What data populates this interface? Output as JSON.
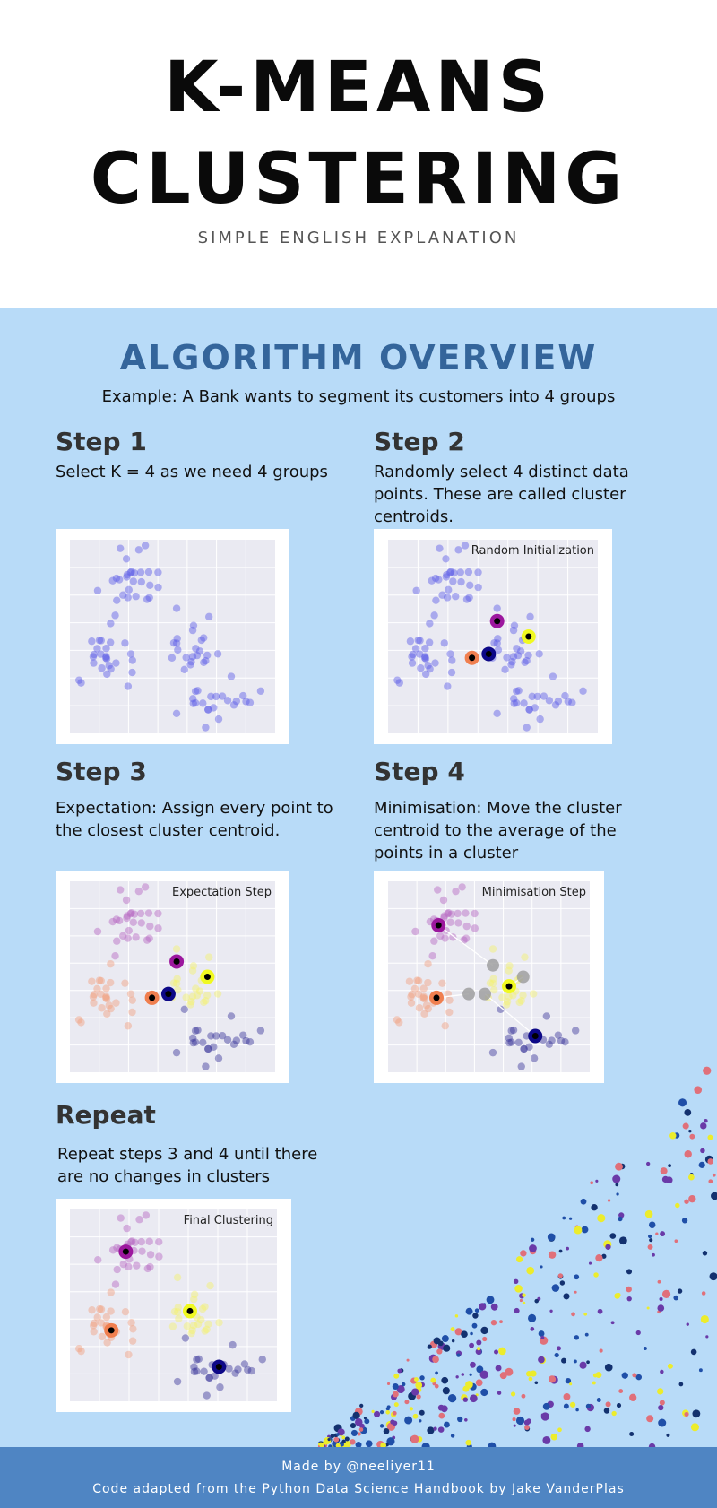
{
  "header": {
    "title_line_1": "K-MEANS",
    "title_line_2": "CLUSTERING",
    "subtitle": "SIMPLE ENGLISH EXPLANATION"
  },
  "overview": {
    "title": "ALGORITHM OVERVIEW",
    "example": "Example: A Bank wants to segment its customers into 4 groups"
  },
  "steps": [
    {
      "heading": "Step 1",
      "text": "Select K = 4 as we need 4 groups",
      "plot_title": ""
    },
    {
      "heading": "Step 2",
      "text": "Randomly select 4 distinct data points. These are called cluster centroids.",
      "plot_title": "Random Initialization"
    },
    {
      "heading": "Step 3",
      "text": "Expectation: Assign every point to the closest cluster centroid.",
      "plot_title": "Expectation Step"
    },
    {
      "heading": "Step 4",
      "text": "Minimisation: Move the cluster centroid to the average of the points in a cluster",
      "plot_title": "Minimisation Step"
    },
    {
      "heading": "Repeat",
      "text": "Repeat steps 3 and 4 until there are no changes in clusters",
      "plot_title": "Final Clustering"
    }
  ],
  "colors": {
    "header_bg": "#ffffff",
    "main_bg": "#b8dbf8",
    "section_title": "#34659b",
    "footer_bg": "#4f85c3",
    "plot_bg": "#eaeaf2",
    "cluster_colors": [
      "#b566c0",
      "#f2a07f",
      "#f4f26a",
      "#3a3599"
    ],
    "centroid_colors": [
      "#9c179e",
      "#f07f4f",
      "#f0f921",
      "#0d0887"
    ]
  },
  "footer": {
    "line_1": "Made by @neeliyer11",
    "line_2": "Code adapted from the Python Data Science Handbook by Jake VanderPlas"
  }
}
